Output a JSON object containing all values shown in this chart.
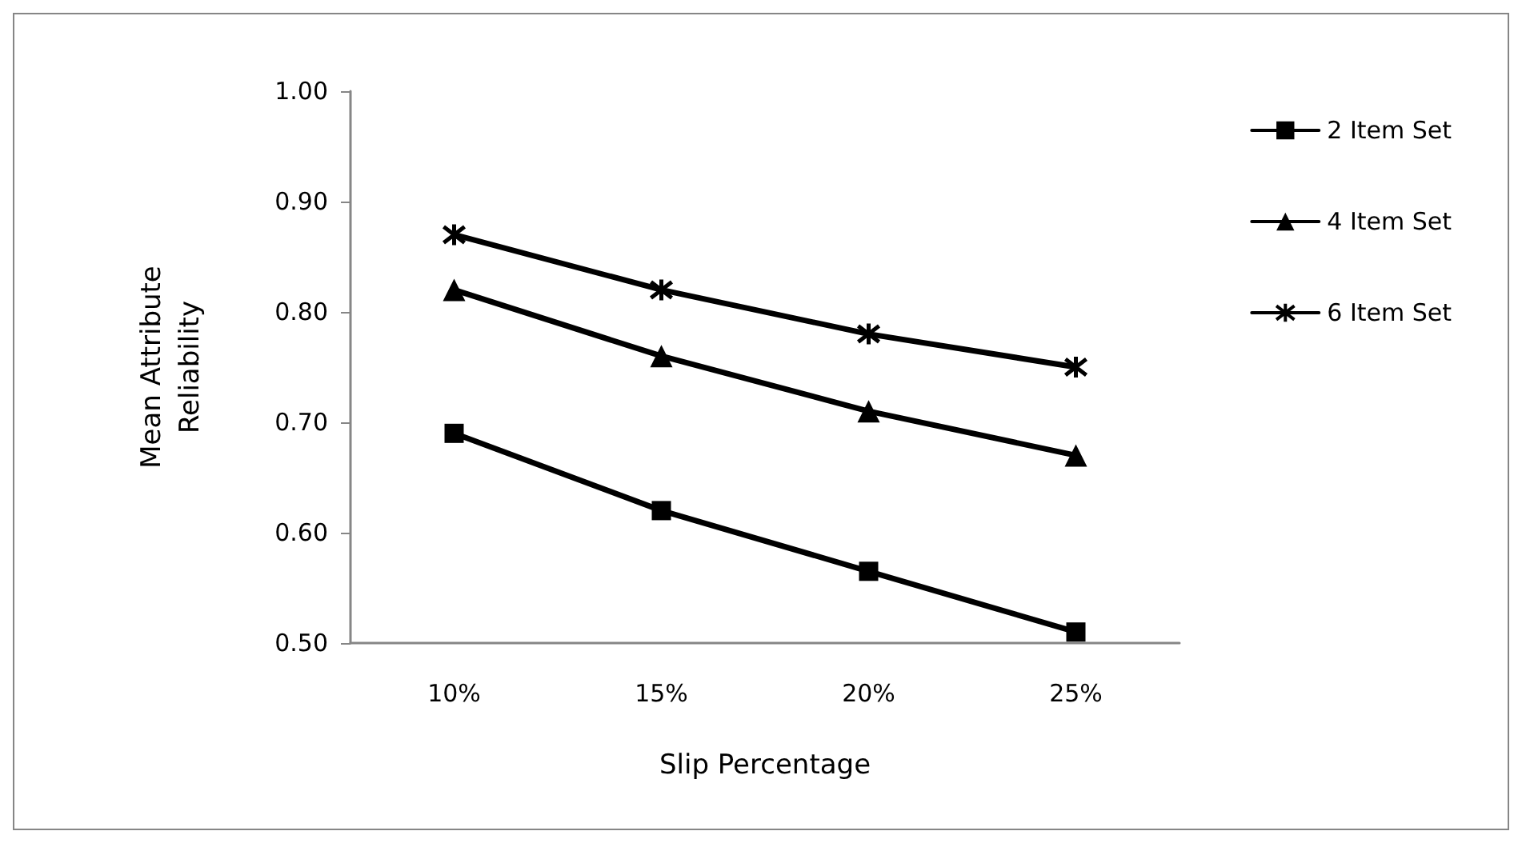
{
  "chart_data": {
    "type": "line",
    "xlabel": "Slip Percentage",
    "ylabel": "Mean Attribute\nReliability",
    "categories": [
      "10%",
      "15%",
      "20%",
      "25%"
    ],
    "series": [
      {
        "name": "2 Item Set",
        "color": "#000000",
        "marker": "square",
        "values": [
          0.69,
          0.62,
          0.565,
          0.51
        ]
      },
      {
        "name": "4 Item Set",
        "color": "#000000",
        "marker": "triangle",
        "values": [
          0.82,
          0.76,
          0.71,
          0.67
        ]
      },
      {
        "name": "6 Item Set",
        "color": "#000000",
        "marker": "cross",
        "values": [
          0.87,
          0.82,
          0.78,
          0.75
        ]
      }
    ],
    "ylim": [
      0.5,
      1.0
    ],
    "yticks": [
      {
        "value": 0.5,
        "label": "0.50"
      },
      {
        "value": 0.6,
        "label": "0.60"
      },
      {
        "value": 0.7,
        "label": "0.70"
      },
      {
        "value": 0.8,
        "label": "0.80"
      },
      {
        "value": 0.9,
        "label": "0.90"
      },
      {
        "value": 1.0,
        "label": "1.00"
      }
    ],
    "grid": false,
    "legend": "right",
    "line_style": "solid"
  }
}
